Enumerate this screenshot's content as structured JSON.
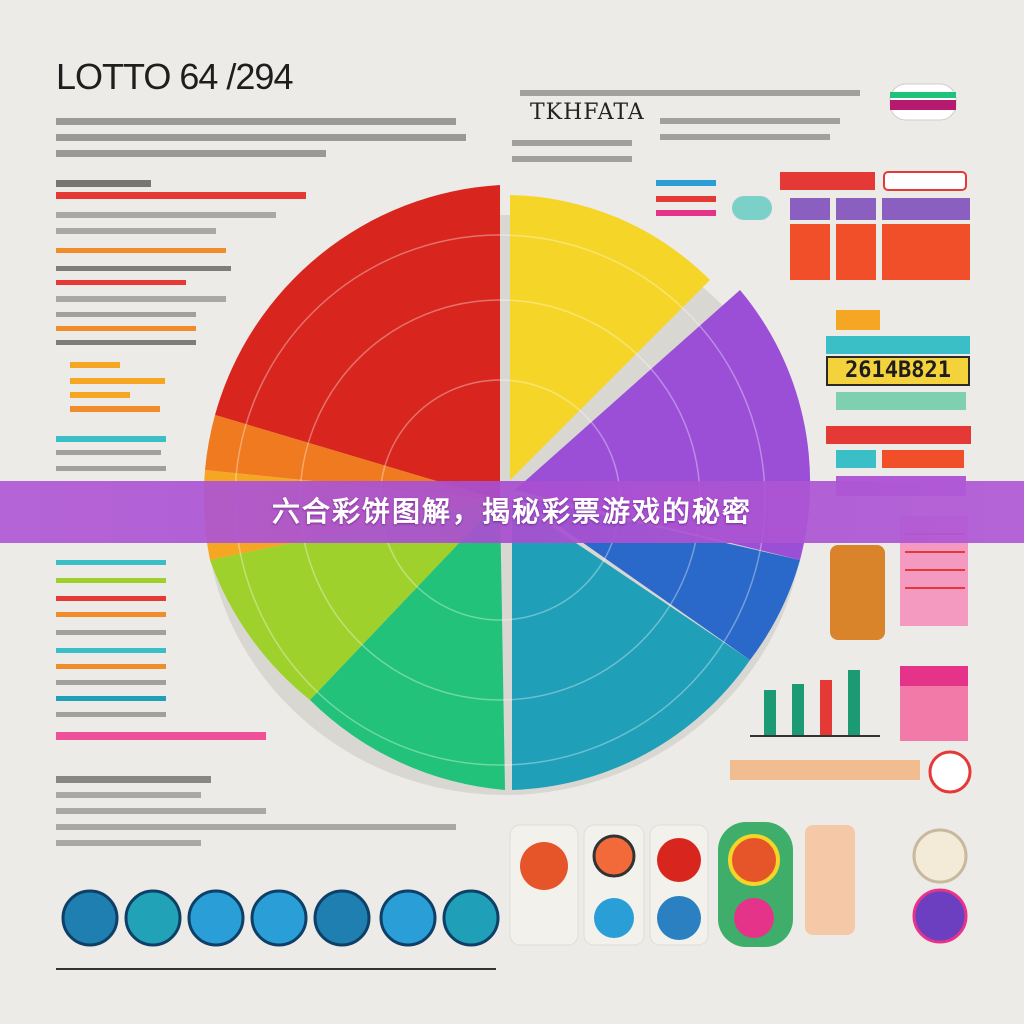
{
  "poster": {
    "title": "LOTTO 64 /294",
    "subhead": "TKHFATA",
    "readout": "2614B821",
    "banner": "六合彩饼图解，揭秘彩票游戏的秘密"
  },
  "colors": {
    "red": "#d8261f",
    "orange": "#f07a1f",
    "yellow": "#f5d628",
    "lime": "#9fd12d",
    "green": "#22c27a",
    "teal": "#1f9fb8",
    "blue": "#2a69c9",
    "purple": "#9a4fd6",
    "banner": "#b15ad6"
  }
}
